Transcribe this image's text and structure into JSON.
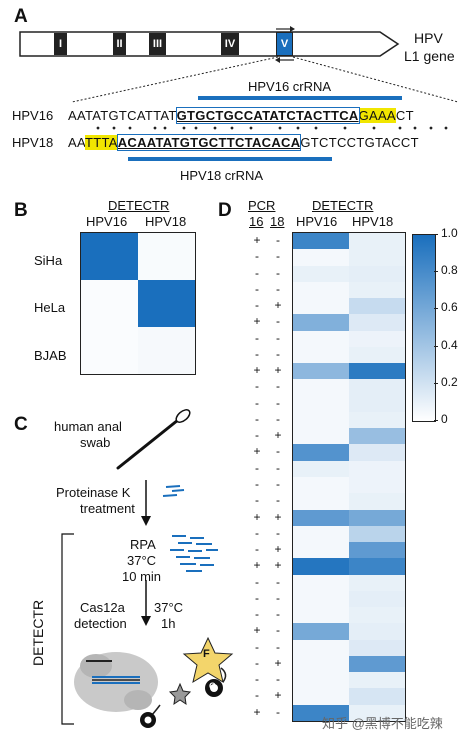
{
  "panelA": {
    "letter": "A",
    "exons": [
      "I",
      "II",
      "III",
      "IV",
      "V"
    ],
    "gene_label_1": "HPV",
    "gene_label_2": "L1 gene",
    "hpv16_crna_label": "HPV16 crRNA",
    "hpv18_crna_label": "HPV18 crRNA",
    "hpv16_name": "HPV16",
    "hpv18_name": "HPV18",
    "hpv16_seq": {
      "pre": "AATATGTCATTAT",
      "target": "GTGCTGCCATATCTACTTCA",
      "pam": "GAAA",
      "post": "CT"
    },
    "hpv18_seq": {
      "pre": "AA",
      "pam": "TTTA",
      "target": "ACAATATGTGCTTCTACACA",
      "post": "GTCTCCTGTACCT"
    }
  },
  "panelB": {
    "letter": "B",
    "header": "DETECTR",
    "cols": [
      "HPV16",
      "HPV18"
    ],
    "rows": [
      "SiHa",
      "HeLa",
      "BJAB"
    ],
    "values": [
      [
        1.0,
        0.03
      ],
      [
        0.02,
        1.0
      ],
      [
        0.02,
        0.04
      ]
    ]
  },
  "panelC": {
    "letter": "C",
    "swab_1": "human anal",
    "swab_2": "swab",
    "prot_1": "Proteinase K",
    "prot_2": "treatment",
    "rpa_1": "RPA",
    "rpa_2": "37°C",
    "rpa_3": "10 min",
    "cas_1": "Cas12a",
    "cas_2": "detection",
    "temp_1": "37°C",
    "temp_2": "1h",
    "side_label": "DETECTR",
    "fluor_f": "F",
    "quencher_q": "Q"
  },
  "panelD": {
    "letter": "D",
    "pcr_header": "PCR",
    "pcr_cols": [
      "16",
      "18"
    ],
    "detectr_header": "DETECTR",
    "detectr_cols": [
      "HPV16",
      "HPV18"
    ],
    "pcr16": [
      "+",
      "-",
      "-",
      "-",
      "-",
      "+",
      "-",
      "-",
      "+",
      "-",
      "-",
      "-",
      "-",
      "+",
      "-",
      "-",
      "-",
      "+",
      "-",
      "-",
      "+",
      "-",
      "-",
      "-",
      "+",
      "-",
      "-",
      "-",
      "-",
      "+"
    ],
    "pcr18": [
      "-",
      "-",
      "-",
      "-",
      "+",
      "-",
      "-",
      "-",
      "+",
      "-",
      "-",
      "-",
      "+",
      "-",
      "-",
      "-",
      "-",
      "+",
      "-",
      "+",
      "+",
      "-",
      "-",
      "-",
      "-",
      "-",
      "+",
      "-",
      "+",
      "-"
    ],
    "hpv16": [
      0.85,
      0.05,
      0.1,
      0.05,
      0.05,
      0.55,
      0.05,
      0.05,
      0.5,
      0.05,
      0.05,
      0.05,
      0.05,
      0.75,
      0.1,
      0.05,
      0.05,
      0.7,
      0.05,
      0.05,
      0.95,
      0.05,
      0.05,
      0.05,
      0.6,
      0.05,
      0.05,
      0.05,
      0.05,
      0.85
    ],
    "hpv18": [
      0.1,
      0.1,
      0.12,
      0.1,
      0.25,
      0.15,
      0.08,
      0.1,
      0.92,
      0.12,
      0.12,
      0.1,
      0.45,
      0.15,
      0.08,
      0.08,
      0.1,
      0.6,
      0.3,
      0.7,
      0.85,
      0.1,
      0.12,
      0.1,
      0.12,
      0.15,
      0.7,
      0.1,
      0.18,
      0.1
    ],
    "colorbar_ticks": [
      "1.0",
      "0.8",
      "0.6",
      "0.4",
      "0.2",
      "0"
    ]
  },
  "watermark": "知乎 @黑博不能吃辣",
  "colors": {
    "accent": "#1a6fbd",
    "pam": "#f1e600"
  }
}
